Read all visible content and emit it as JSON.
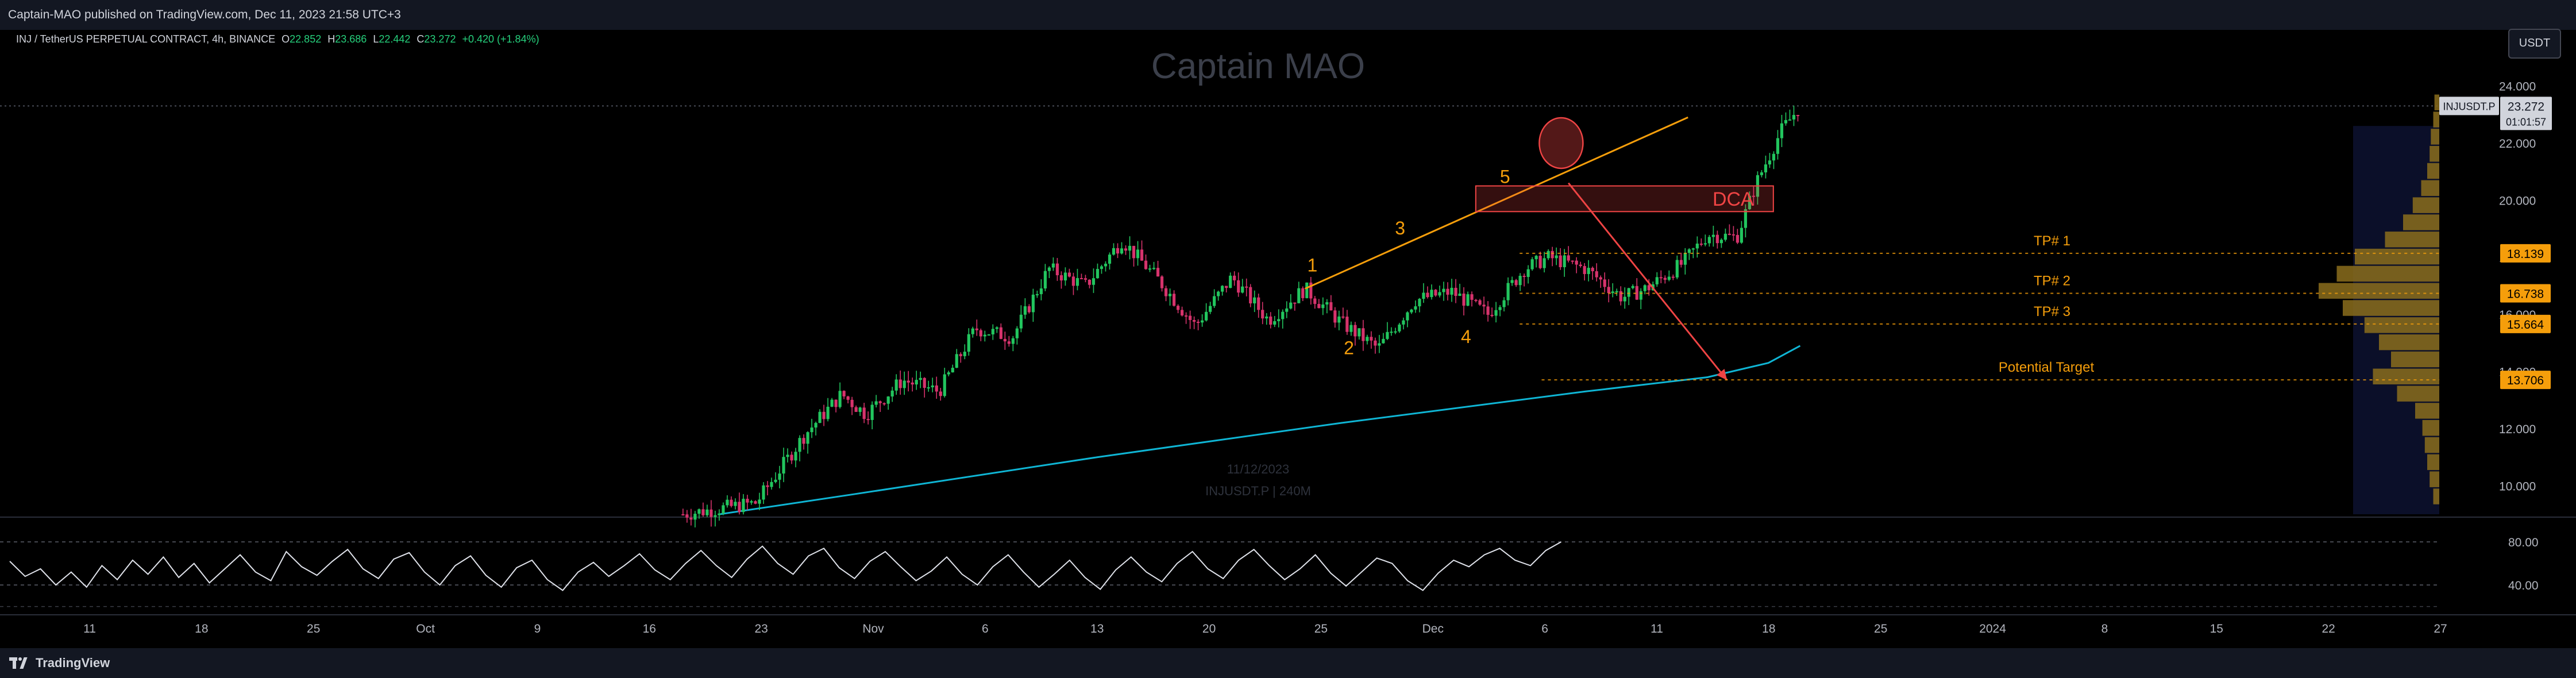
{
  "header": {
    "published_text": "Captain-MAO published on TradingView.com, Dec 11, 2023 21:58 UTC+3"
  },
  "legend": {
    "symbol": "INJ / TetherUS PERPETUAL CONTRACT, 4h, BINANCE",
    "open_label": "O",
    "open": "22.852",
    "high_label": "H",
    "high": "23.686",
    "low_label": "L",
    "low": "22.442",
    "close_label": "C",
    "close": "23.272",
    "change": "+0.420 (+1.84%)"
  },
  "currency_button": "USDT",
  "watermark": {
    "main": "Captain MAO",
    "date": "11/12/2023",
    "sub": "INJUSDT.P | 240M"
  },
  "price_tag": {
    "ticker": "INJUSDT.P",
    "price": "23.272",
    "countdown": "01:01:57"
  },
  "footer": {
    "brand": "TradingView"
  },
  "colors": {
    "up": "#26a69a",
    "up_bright": "#22c55e",
    "down": "#d6336c",
    "trendline": "#f59e0b",
    "ma": "#0fb5d4",
    "target": "#ef4444",
    "volume_profile": "#8b6d1c",
    "background": "#000000"
  },
  "chart_data": {
    "type": "candlestick",
    "price_axis": {
      "ticks": [
        "24.000",
        "22.000",
        "20.000",
        "18.000",
        "16.000",
        "14.000",
        "12.000",
        "10.000"
      ],
      "ylim": [
        9.0,
        25.2
      ]
    },
    "rsi_axis": {
      "ticks": [
        "80.00",
        "40.00"
      ],
      "ylim": [
        15,
        95
      ]
    },
    "time_axis": {
      "labels": [
        "11",
        "18",
        "25",
        "Oct",
        "9",
        "16",
        "23",
        "Nov",
        "6",
        "13",
        "20",
        "25",
        "Dec",
        "6",
        "11",
        "18",
        "25",
        "2024",
        "8",
        "15",
        "22",
        "27"
      ]
    },
    "price_path": [
      {
        "t": 0.28,
        "p": 9.0
      },
      {
        "t": 0.31,
        "p": 9.4
      },
      {
        "t": 0.33,
        "p": 11.8
      },
      {
        "t": 0.345,
        "p": 13.2
      },
      {
        "t": 0.355,
        "p": 12.5
      },
      {
        "t": 0.37,
        "p": 13.7
      },
      {
        "t": 0.385,
        "p": 13.3
      },
      {
        "t": 0.4,
        "p": 15.5
      },
      {
        "t": 0.415,
        "p": 15.2
      },
      {
        "t": 0.43,
        "p": 17.6
      },
      {
        "t": 0.445,
        "p": 17.0
      },
      {
        "t": 0.46,
        "p": 18.6
      },
      {
        "t": 0.475,
        "p": 17.2
      },
      {
        "t": 0.49,
        "p": 15.6
      },
      {
        "t": 0.505,
        "p": 17.3
      },
      {
        "t": 0.52,
        "p": 15.8
      },
      {
        "t": 0.535,
        "p": 16.9
      },
      {
        "t": 0.55,
        "p": 15.7
      },
      {
        "t": 0.565,
        "p": 14.8
      },
      {
        "t": 0.58,
        "p": 16.5
      },
      {
        "t": 0.595,
        "p": 16.8
      },
      {
        "t": 0.61,
        "p": 16.0
      },
      {
        "t": 0.625,
        "p": 17.6
      },
      {
        "t": 0.635,
        "p": 18.0
      },
      {
        "t": 0.65,
        "p": 17.6
      },
      {
        "t": 0.665,
        "p": 16.6
      },
      {
        "t": 0.675,
        "p": 16.9
      },
      {
        "t": 0.69,
        "p": 17.8
      },
      {
        "t": 0.7,
        "p": 18.8
      },
      {
        "t": 0.712,
        "p": 18.7
      },
      {
        "t": 0.72,
        "p": 20.6
      },
      {
        "t": 0.73,
        "p": 22.4
      },
      {
        "t": 0.738,
        "p": 23.3
      }
    ],
    "moving_average": [
      {
        "t": 0.295,
        "p": 9.0
      },
      {
        "t": 0.35,
        "p": 9.7
      },
      {
        "t": 0.45,
        "p": 11.0
      },
      {
        "t": 0.55,
        "p": 12.2
      },
      {
        "t": 0.65,
        "p": 13.3
      },
      {
        "t": 0.7,
        "p": 13.8
      },
      {
        "t": 0.725,
        "p": 14.3
      },
      {
        "t": 0.738,
        "p": 14.9
      }
    ],
    "rsi_values": [
      62,
      48,
      55,
      40,
      52,
      38,
      58,
      45,
      63,
      50,
      66,
      47,
      60,
      42,
      55,
      68,
      52,
      44,
      71,
      57,
      49,
      62,
      73,
      55,
      46,
      64,
      70,
      52,
      40,
      58,
      67,
      49,
      38,
      56,
      63,
      45,
      35,
      52,
      61,
      48,
      58,
      69,
      54,
      45,
      60,
      72,
      58,
      47,
      64,
      76,
      60,
      50,
      67,
      74,
      56,
      46,
      62,
      71,
      57,
      44,
      53,
      66,
      50,
      40,
      57,
      68,
      52,
      38,
      50,
      63,
      47,
      36,
      54,
      66,
      52,
      43,
      60,
      71,
      55,
      46,
      63,
      73,
      58,
      45,
      55,
      68,
      51,
      39,
      52,
      65,
      60,
      44,
      35,
      51,
      63,
      57,
      68,
      74,
      63,
      58,
      72,
      80
    ],
    "wave_labels": [
      {
        "label": "1",
        "t": 0.538,
        "p": 17.5
      },
      {
        "label": "2",
        "t": 0.553,
        "p": 14.6
      },
      {
        "label": "3",
        "t": 0.574,
        "p": 18.8
      },
      {
        "label": "4",
        "t": 0.601,
        "p": 15.0
      },
      {
        "label": "5",
        "t": 0.617,
        "p": 20.6
      }
    ],
    "trendline": [
      {
        "t": 0.535,
        "p": 16.9
      },
      {
        "t": 0.692,
        "p": 22.9
      }
    ],
    "dca_zone": {
      "label": "DCA",
      "t0": 0.605,
      "t1": 0.727,
      "p0": 19.6,
      "p1": 20.5
    },
    "circle_highlight": {
      "t": 0.64,
      "p": 22.0
    },
    "target_arrow": [
      {
        "t": 0.643,
        "p": 20.6
      },
      {
        "t": 0.708,
        "p": 13.7
      }
    ],
    "levels": [
      {
        "label": "TP# 1",
        "price": 18.139,
        "tag": "18.139",
        "t0": 0.623
      },
      {
        "label": "TP# 2",
        "price": 16.738,
        "tag": "16.738",
        "t0": 0.623
      },
      {
        "label": "TP# 3",
        "price": 15.664,
        "tag": "15.664",
        "t0": 0.623
      },
      {
        "label": "Potential Target",
        "price": 13.706,
        "tag": "13.706",
        "t0": 0.632
      }
    ],
    "volume_profile": [
      {
        "p": 9.6,
        "v": 0.05
      },
      {
        "p": 10.2,
        "v": 0.08
      },
      {
        "p": 10.8,
        "v": 0.1
      },
      {
        "p": 11.4,
        "v": 0.12
      },
      {
        "p": 12.0,
        "v": 0.14
      },
      {
        "p": 12.6,
        "v": 0.2
      },
      {
        "p": 13.2,
        "v": 0.35
      },
      {
        "p": 13.8,
        "v": 0.55
      },
      {
        "p": 14.4,
        "v": 0.4
      },
      {
        "p": 15.0,
        "v": 0.5
      },
      {
        "p": 15.6,
        "v": 0.62
      },
      {
        "p": 16.2,
        "v": 0.8
      },
      {
        "p": 16.8,
        "v": 1.0
      },
      {
        "p": 17.4,
        "v": 0.85
      },
      {
        "p": 18.0,
        "v": 0.7
      },
      {
        "p": 18.6,
        "v": 0.45
      },
      {
        "p": 19.2,
        "v": 0.3
      },
      {
        "p": 19.8,
        "v": 0.22
      },
      {
        "p": 20.4,
        "v": 0.15
      },
      {
        "p": 21.0,
        "v": 0.1
      },
      {
        "p": 21.6,
        "v": 0.08
      },
      {
        "p": 22.2,
        "v": 0.07
      },
      {
        "p": 22.8,
        "v": 0.05
      },
      {
        "p": 23.4,
        "v": 0.04
      }
    ]
  }
}
